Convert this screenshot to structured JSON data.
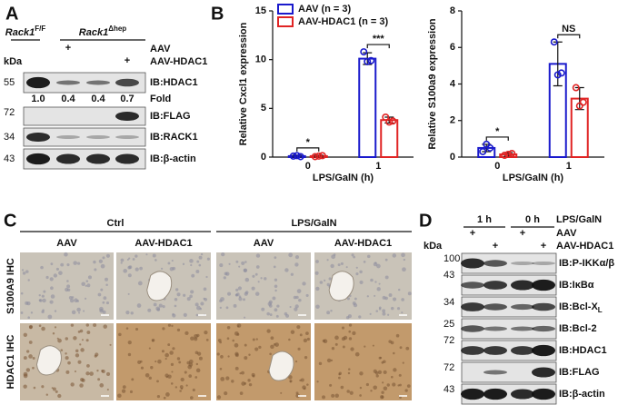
{
  "panel_a": {
    "label": "A",
    "genotypes": [
      {
        "name": "Rack1",
        "sup": "F/F"
      },
      {
        "name": "Rack1",
        "sup": "Δhep"
      }
    ],
    "rows": [
      "AAV",
      "AAV-HDAC1"
    ],
    "plus": "+",
    "kda": "kDa",
    "blots": [
      {
        "marker": 55,
        "label": "IB:HDAC1"
      },
      {
        "marker": 72,
        "label": "IB:FLAG"
      },
      {
        "marker": 34,
        "label": "IB:RACK1"
      },
      {
        "marker": 43,
        "label": "IB:β-actin"
      }
    ],
    "fold_label": "Fold",
    "fold": [
      "1.0",
      "0.4",
      "0.4",
      "0.7"
    ]
  },
  "panel_b_label": "B",
  "chart_data": [
    {
      "type": "bar",
      "ylabel": "Relative Cxcl1 expression",
      "xlabel": "LPS/GalN (h)",
      "categories": [
        "0",
        "1"
      ],
      "ylim": [
        0,
        15
      ],
      "yticks": [
        0,
        5,
        10,
        15
      ],
      "legend": "top-left",
      "significance": [
        "*",
        "***"
      ],
      "series": [
        {
          "name": "AAV (n = 3)",
          "color": "#1a1acc",
          "values": [
            0.1,
            10.1
          ],
          "errors": [
            0.1,
            0.6
          ],
          "points": [
            [
              0.1,
              0.15,
              0.05
            ],
            [
              10.8,
              9.8,
              9.9
            ]
          ]
        },
        {
          "name": "AAV-HDAC1 (n = 3)",
          "color": "#e02424",
          "values": [
            0.1,
            3.8
          ],
          "errors": [
            0.1,
            0.3
          ],
          "points": [
            [
              0.05,
              0.1,
              0.15
            ],
            [
              4.1,
              3.6,
              3.7
            ]
          ]
        }
      ]
    },
    {
      "type": "bar",
      "ylabel": "Relative S100a9 expression",
      "xlabel": "LPS/GalN (h)",
      "categories": [
        "0",
        "1"
      ],
      "ylim": [
        0,
        8
      ],
      "yticks": [
        0,
        2,
        4,
        6,
        8
      ],
      "significance": [
        "*",
        "NS"
      ],
      "series": [
        {
          "color": "#1a1acc",
          "values": [
            0.5,
            5.1
          ],
          "errors": [
            0.2,
            1.2
          ],
          "points": [
            [
              0.3,
              0.7,
              0.5
            ],
            [
              6.3,
              4.5,
              4.6
            ]
          ]
        },
        {
          "color": "#e02424",
          "values": [
            0.15,
            3.2
          ],
          "errors": [
            0.1,
            0.6
          ],
          "points": [
            [
              0.1,
              0.15,
              0.2
            ],
            [
              3.8,
              2.8,
              3.0
            ]
          ]
        }
      ]
    }
  ],
  "panel_c": {
    "label": "C",
    "groups": [
      "Ctrl",
      "LPS/GalN"
    ],
    "columns": [
      "AAV",
      "AAV-HDAC1",
      "AAV",
      "AAV-HDAC1"
    ],
    "rows": [
      "S100A9 IHC",
      "HDAC1 IHC"
    ]
  },
  "panel_d": {
    "label": "D",
    "times": [
      "1 h",
      "0 h"
    ],
    "time_label": "LPS/GalN",
    "rows": [
      "AAV",
      "AAV-HDAC1"
    ],
    "plus": "+",
    "kda": "kDa",
    "blots": [
      {
        "marker": 100,
        "label": "IB:P-IKKα/β"
      },
      {
        "marker": 43,
        "label": "IB:IκBα"
      },
      {
        "marker": 34,
        "label": "IB:Bcl-X",
        "sub": "L"
      },
      {
        "marker": 25,
        "label": "IB:Bcl-2"
      },
      {
        "marker": 72,
        "label": "IB:HDAC1"
      },
      {
        "marker": 72,
        "label": "IB:FLAG"
      },
      {
        "marker": 43,
        "label": "IB:β-actin"
      }
    ]
  }
}
